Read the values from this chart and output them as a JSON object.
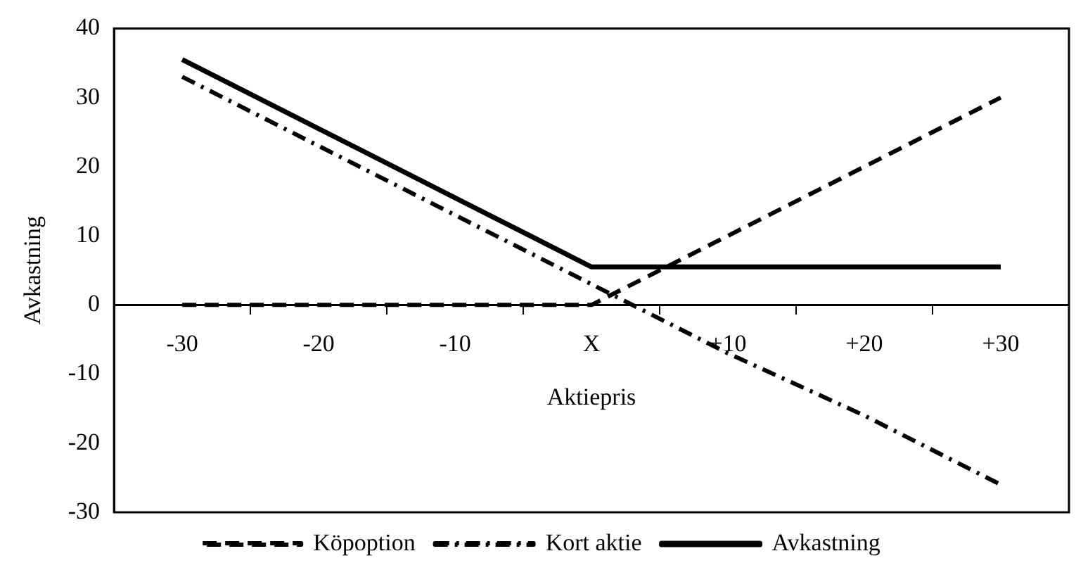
{
  "chart_data": {
    "type": "line",
    "xlabel": "Aktiepris",
    "ylabel": "Avkastning",
    "categories": [
      "-30",
      "-20",
      "-10",
      "X",
      "+10",
      "+20",
      "+30"
    ],
    "series": [
      {
        "name": "Köpoption",
        "color": "#000000",
        "line_style": "dashed",
        "values": [
          0,
          0,
          0,
          0,
          10,
          20,
          30
        ]
      },
      {
        "name": "Kort aktie",
        "color": "#000000",
        "line_style": "dashdot",
        "values": [
          33,
          23,
          13,
          3,
          -7,
          -16,
          -26
        ]
      },
      {
        "name": "Avkastning",
        "color": "#000000",
        "line_style": "solid",
        "values": [
          35.5,
          25.5,
          15.5,
          5.5,
          5.5,
          5.5,
          5.5
        ]
      }
    ],
    "ylim": [
      -30,
      40
    ],
    "yticks": [
      -30,
      -20,
      -10,
      0,
      10,
      20,
      30,
      40
    ],
    "grid": false,
    "legend": "bottom",
    "marker": "none"
  }
}
